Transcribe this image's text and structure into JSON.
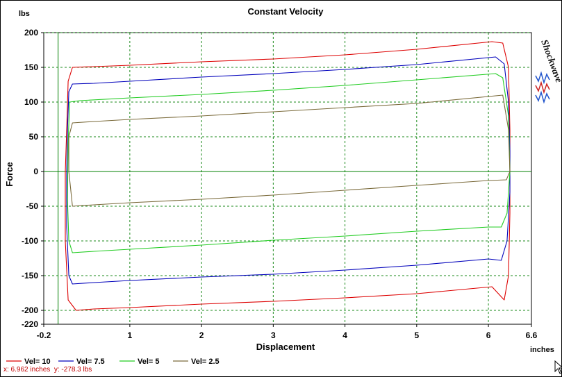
{
  "chart_data": {
    "type": "line",
    "title": "Constant Velocity",
    "xlabel": "Displacement",
    "ylabel": "Force",
    "x_unit": "inches",
    "y_unit": "lbs",
    "xlim": [
      -0.2,
      6.6
    ],
    "ylim": [
      -220,
      200
    ],
    "x_ticks": [
      -0.2,
      1,
      2,
      3,
      4,
      5,
      6,
      6.6
    ],
    "x_tick_labels": [
      "-0.2",
      "1",
      "2",
      "3",
      "4",
      "5",
      "6",
      "6.6"
    ],
    "y_ticks": [
      200,
      150,
      100,
      50,
      0,
      -50,
      -100,
      -150,
      -200,
      -220
    ],
    "y_tick_labels": [
      "200",
      "150",
      "100",
      "50",
      "0",
      "-50",
      "-100",
      "-150",
      "-200",
      "-220"
    ],
    "grid": true,
    "legend_position": "bottom-left",
    "series": [
      {
        "name": "Vel= 10",
        "color": "#dd0000",
        "upper": [
          [
            0.12,
            60
          ],
          [
            0.14,
            130
          ],
          [
            0.2,
            150
          ],
          [
            0.5,
            151
          ],
          [
            1,
            153
          ],
          [
            2,
            158
          ],
          [
            3,
            162
          ],
          [
            4,
            168
          ],
          [
            5,
            176
          ],
          [
            6.05,
            187
          ],
          [
            6.2,
            185
          ],
          [
            6.28,
            150
          ],
          [
            6.3,
            60
          ]
        ],
        "lower": [
          [
            6.3,
            -60
          ],
          [
            6.28,
            -150
          ],
          [
            6.22,
            -185
          ],
          [
            6.05,
            -166
          ],
          [
            5,
            -176
          ],
          [
            4,
            -182
          ],
          [
            3,
            -187
          ],
          [
            2,
            -191
          ],
          [
            1,
            -196
          ],
          [
            0.5,
            -198
          ],
          [
            0.25,
            -200
          ],
          [
            0.14,
            -185
          ],
          [
            0.1,
            -100
          ],
          [
            0.1,
            0
          ],
          [
            0.12,
            60
          ]
        ]
      },
      {
        "name": "Vel= 7.5",
        "color": "#0000bb",
        "upper": [
          [
            0.13,
            60
          ],
          [
            0.15,
            115
          ],
          [
            0.2,
            126
          ],
          [
            0.5,
            127
          ],
          [
            1,
            130
          ],
          [
            2,
            136
          ],
          [
            3,
            141
          ],
          [
            4,
            147
          ],
          [
            5,
            154
          ],
          [
            6.1,
            165
          ],
          [
            6.22,
            155
          ],
          [
            6.28,
            100
          ],
          [
            6.3,
            30
          ]
        ],
        "lower": [
          [
            6.3,
            -30
          ],
          [
            6.26,
            -100
          ],
          [
            6.18,
            -128
          ],
          [
            6,
            -126
          ],
          [
            5,
            -135
          ],
          [
            4,
            -142
          ],
          [
            3,
            -148
          ],
          [
            2,
            -152
          ],
          [
            1,
            -157
          ],
          [
            0.5,
            -160
          ],
          [
            0.2,
            -162
          ],
          [
            0.15,
            -150
          ],
          [
            0.12,
            -80
          ],
          [
            0.12,
            0
          ],
          [
            0.13,
            60
          ]
        ]
      },
      {
        "name": "Vel= 5",
        "color": "#22cc22",
        "upper": [
          [
            0.14,
            40
          ],
          [
            0.16,
            100
          ],
          [
            0.3,
            102
          ],
          [
            1,
            106
          ],
          [
            2,
            111
          ],
          [
            3,
            117
          ],
          [
            4,
            124
          ],
          [
            5,
            132
          ],
          [
            6.1,
            141
          ],
          [
            6.2,
            135
          ],
          [
            6.28,
            80
          ],
          [
            6.3,
            0
          ]
        ],
        "lower": [
          [
            6.3,
            0
          ],
          [
            6.26,
            -60
          ],
          [
            6.18,
            -80
          ],
          [
            6,
            -80
          ],
          [
            5,
            -86
          ],
          [
            4,
            -93
          ],
          [
            3,
            -99
          ],
          [
            2,
            -106
          ],
          [
            1,
            -112
          ],
          [
            0.5,
            -115
          ],
          [
            0.2,
            -117
          ],
          [
            0.15,
            -100
          ],
          [
            0.13,
            -40
          ],
          [
            0.14,
            40
          ]
        ]
      },
      {
        "name": "Vel= 2.5",
        "color": "#7a6a3a",
        "upper": [
          [
            0.15,
            50
          ],
          [
            0.2,
            70
          ],
          [
            0.5,
            72
          ],
          [
            1,
            75
          ],
          [
            2,
            80
          ],
          [
            3,
            86
          ],
          [
            4,
            92
          ],
          [
            5,
            98
          ],
          [
            6.2,
            110
          ],
          [
            6.28,
            60
          ],
          [
            6.3,
            0
          ]
        ],
        "lower": [
          [
            6.3,
            0
          ],
          [
            6.25,
            -12
          ],
          [
            6,
            -13
          ],
          [
            5,
            -20
          ],
          [
            4,
            -27
          ],
          [
            3,
            -34
          ],
          [
            2,
            -40
          ],
          [
            1,
            -45
          ],
          [
            0.5,
            -48
          ],
          [
            0.2,
            -50
          ],
          [
            0.15,
            0
          ],
          [
            0.15,
            50
          ]
        ]
      }
    ]
  },
  "cursor_readout": {
    "x_label": "x: 6.962 inches",
    "y_label": "y: -278.3 lbs"
  },
  "logo_text": "Shockwave",
  "colors": {
    "grid": "#1a8a1a",
    "axis_zero": "#008000",
    "frame": "#000000",
    "background": "#ffffff"
  }
}
